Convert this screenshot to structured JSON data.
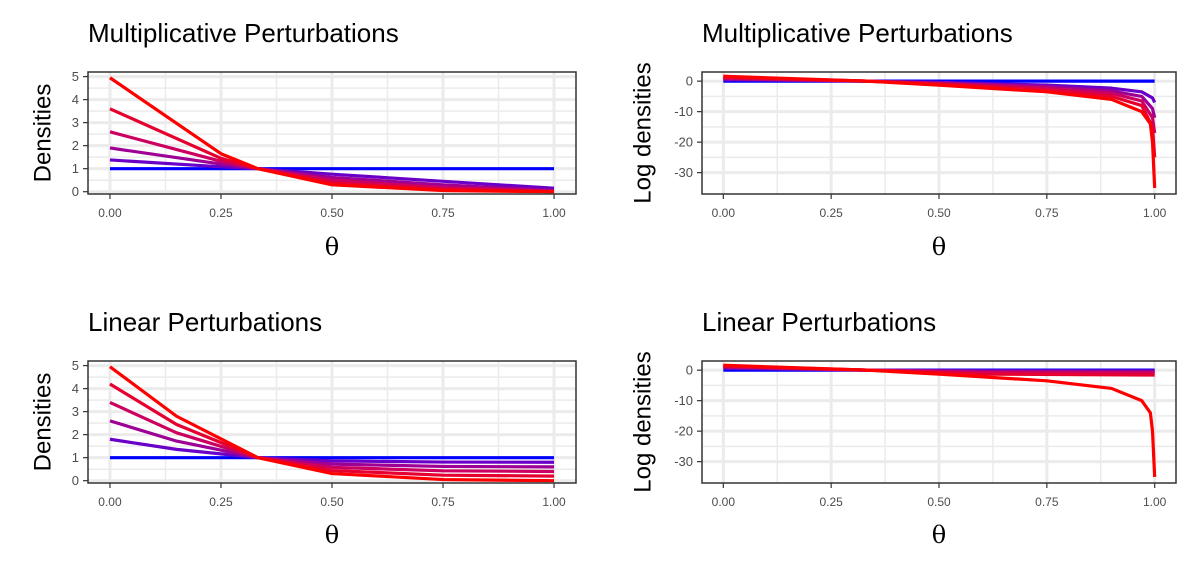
{
  "chart_data": [
    {
      "type": "line",
      "title": "Multiplicative Perturbations",
      "xlabel": "θ",
      "ylabel": "Densities",
      "xlim": [
        0,
        1
      ],
      "ylim": [
        -0.1,
        5.2
      ],
      "x_ticks": [
        "0.00",
        "0.25",
        "0.50",
        "0.75",
        "1.00"
      ],
      "y_ticks": [
        "0",
        "1",
        "2",
        "3",
        "4",
        "5"
      ],
      "grid": true,
      "legend": "none",
      "series": [
        {
          "color": "#0000FF",
          "points": [
            [
              0,
              1
            ],
            [
              0.25,
              1
            ],
            [
              0.5,
              1
            ],
            [
              0.75,
              1
            ],
            [
              1,
              1
            ]
          ]
        },
        {
          "color": "#6A00C8",
          "points": [
            [
              0,
              1.38
            ],
            [
              0.25,
              1.08
            ],
            [
              0.333,
              1
            ],
            [
              0.5,
              0.76
            ],
            [
              0.75,
              0.45
            ],
            [
              1,
              0.15
            ]
          ]
        },
        {
          "color": "#9E0095",
          "points": [
            [
              0,
              1.9
            ],
            [
              0.25,
              1.2
            ],
            [
              0.333,
              1
            ],
            [
              0.5,
              0.62
            ],
            [
              0.75,
              0.3
            ],
            [
              1,
              0.05
            ]
          ]
        },
        {
          "color": "#CC0060",
          "points": [
            [
              0,
              2.6
            ],
            [
              0.25,
              1.32
            ],
            [
              0.333,
              1
            ],
            [
              0.5,
              0.5
            ],
            [
              0.75,
              0.18
            ],
            [
              1,
              0.02
            ]
          ]
        },
        {
          "color": "#E60030",
          "points": [
            [
              0,
              3.6
            ],
            [
              0.25,
              1.45
            ],
            [
              0.333,
              1
            ],
            [
              0.5,
              0.38
            ],
            [
              0.75,
              0.1
            ],
            [
              1,
              0
            ]
          ]
        },
        {
          "color": "#FF0000",
          "points": [
            [
              0,
              4.95
            ],
            [
              0.25,
              1.65
            ],
            [
              0.333,
              1
            ],
            [
              0.5,
              0.3
            ],
            [
              0.75,
              0.05
            ],
            [
              1,
              0
            ]
          ]
        }
      ]
    },
    {
      "type": "line",
      "title": "Multiplicative Perturbations",
      "xlabel": "θ",
      "ylabel": "Log densities",
      "xlim": [
        0,
        1
      ],
      "ylim": [
        -37,
        3
      ],
      "x_ticks": [
        "0.00",
        "0.25",
        "0.50",
        "0.75",
        "1.00"
      ],
      "y_ticks": [
        "0",
        "-10",
        "-20",
        "-30"
      ],
      "grid": true,
      "legend": "none",
      "series": [
        {
          "color": "#0000FF",
          "points": [
            [
              0,
              0
            ],
            [
              1,
              0
            ]
          ]
        },
        {
          "color": "#6A00C8",
          "points": [
            [
              0,
              0.5
            ],
            [
              0.333,
              0
            ],
            [
              0.5,
              -0.4
            ],
            [
              0.75,
              -1.3
            ],
            [
              0.9,
              -2.3
            ],
            [
              0.97,
              -3.5
            ],
            [
              0.995,
              -5.5
            ],
            [
              1,
              -7
            ]
          ]
        },
        {
          "color": "#9E0095",
          "points": [
            [
              0,
              0.7
            ],
            [
              0.333,
              0
            ],
            [
              0.5,
              -0.6
            ],
            [
              0.75,
              -1.8
            ],
            [
              0.9,
              -3.2
            ],
            [
              0.97,
              -5
            ],
            [
              0.995,
              -9
            ],
            [
              1,
              -12
            ]
          ]
        },
        {
          "color": "#CC0060",
          "points": [
            [
              0,
              1
            ],
            [
              0.333,
              0
            ],
            [
              0.5,
              -0.8
            ],
            [
              0.75,
              -2.3
            ],
            [
              0.9,
              -4
            ],
            [
              0.97,
              -6.5
            ],
            [
              0.995,
              -12
            ],
            [
              1,
              -17
            ]
          ]
        },
        {
          "color": "#E60030",
          "points": [
            [
              0,
              1.3
            ],
            [
              0.333,
              0
            ],
            [
              0.5,
              -1
            ],
            [
              0.75,
              -2.9
            ],
            [
              0.9,
              -5
            ],
            [
              0.97,
              -8
            ],
            [
              0.995,
              -15
            ],
            [
              1,
              -25
            ]
          ]
        },
        {
          "color": "#FF0000",
          "points": [
            [
              0,
              1.6
            ],
            [
              0.333,
              0
            ],
            [
              0.5,
              -1.3
            ],
            [
              0.75,
              -3.5
            ],
            [
              0.9,
              -6
            ],
            [
              0.97,
              -10
            ],
            [
              0.99,
              -14
            ],
            [
              0.995,
              -20
            ],
            [
              1,
              -35
            ]
          ]
        }
      ]
    },
    {
      "type": "line",
      "title": "Linear Perturbations",
      "xlabel": "θ",
      "ylabel": "Densities",
      "xlim": [
        0,
        1
      ],
      "ylim": [
        -0.1,
        5.2
      ],
      "x_ticks": [
        "0.00",
        "0.25",
        "0.50",
        "0.75",
        "1.00"
      ],
      "y_ticks": [
        "0",
        "1",
        "2",
        "3",
        "4",
        "5"
      ],
      "grid": true,
      "legend": "none",
      "series": [
        {
          "color": "#0000FF",
          "points": [
            [
              0,
              1
            ],
            [
              0.333,
              1
            ],
            [
              1,
              1
            ]
          ]
        },
        {
          "color": "#6A00C8",
          "points": [
            [
              0,
              1.8
            ],
            [
              0.15,
              1.36
            ],
            [
              0.333,
              1
            ],
            [
              0.5,
              0.86
            ],
            [
              0.75,
              0.81
            ],
            [
              1,
              0.8
            ]
          ]
        },
        {
          "color": "#9E0095",
          "points": [
            [
              0,
              2.6
            ],
            [
              0.15,
              1.72
            ],
            [
              0.333,
              1
            ],
            [
              0.5,
              0.72
            ],
            [
              0.75,
              0.62
            ],
            [
              1,
              0.6
            ]
          ]
        },
        {
          "color": "#CC0060",
          "points": [
            [
              0,
              3.4
            ],
            [
              0.15,
              2.08
            ],
            [
              0.333,
              1
            ],
            [
              0.5,
              0.58
            ],
            [
              0.75,
              0.43
            ],
            [
              1,
              0.4
            ]
          ]
        },
        {
          "color": "#E60030",
          "points": [
            [
              0,
              4.2
            ],
            [
              0.15,
              2.44
            ],
            [
              0.333,
              1
            ],
            [
              0.5,
              0.44
            ],
            [
              0.75,
              0.24
            ],
            [
              1,
              0.2
            ]
          ]
        },
        {
          "color": "#FF0000",
          "points": [
            [
              0,
              4.95
            ],
            [
              0.15,
              2.8
            ],
            [
              0.333,
              1
            ],
            [
              0.5,
              0.31
            ],
            [
              0.75,
              0.05
            ],
            [
              1,
              0
            ]
          ]
        }
      ]
    },
    {
      "type": "line",
      "title": "Linear Perturbations",
      "xlabel": "θ",
      "ylabel": "Log densities",
      "xlim": [
        0,
        1
      ],
      "ylim": [
        -37,
        3
      ],
      "x_ticks": [
        "0.00",
        "0.25",
        "0.50",
        "0.75",
        "1.00"
      ],
      "y_ticks": [
        "0",
        "-10",
        "-20",
        "-30"
      ],
      "grid": true,
      "legend": "none",
      "series": [
        {
          "color": "#0000FF",
          "points": [
            [
              0,
              0
            ],
            [
              1,
              0
            ]
          ]
        },
        {
          "color": "#6A00C8",
          "points": [
            [
              0,
              0.6
            ],
            [
              0.333,
              0
            ],
            [
              0.6,
              -0.2
            ],
            [
              1,
              -0.22
            ]
          ]
        },
        {
          "color": "#9E0095",
          "points": [
            [
              0,
              0.9
            ],
            [
              0.333,
              0
            ],
            [
              0.6,
              -0.45
            ],
            [
              1,
              -0.5
            ]
          ]
        },
        {
          "color": "#CC0060",
          "points": [
            [
              0,
              1.2
            ],
            [
              0.333,
              0
            ],
            [
              0.6,
              -0.8
            ],
            [
              1,
              -0.9
            ]
          ]
        },
        {
          "color": "#E60030",
          "points": [
            [
              0,
              1.4
            ],
            [
              0.333,
              0
            ],
            [
              0.6,
              -1.3
            ],
            [
              1,
              -1.6
            ]
          ]
        },
        {
          "color": "#FF0000",
          "points": [
            [
              0,
              1.6
            ],
            [
              0.333,
              0
            ],
            [
              0.5,
              -1.3
            ],
            [
              0.75,
              -3.5
            ],
            [
              0.9,
              -6
            ],
            [
              0.97,
              -10
            ],
            [
              0.99,
              -14
            ],
            [
              0.995,
              -20
            ],
            [
              1,
              -35
            ]
          ]
        }
      ]
    }
  ]
}
